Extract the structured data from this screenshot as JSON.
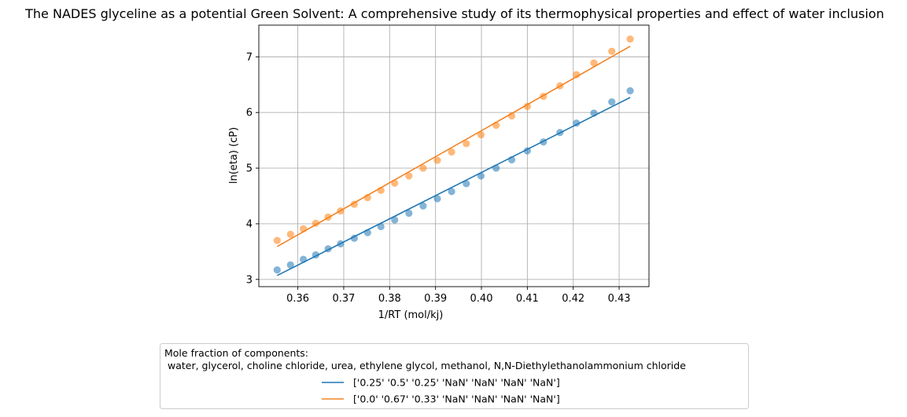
{
  "chart_data": {
    "type": "scatter",
    "title": "The NADES glyceline as a potential Green Solvent: A comprehensive study of its thermophysical properties and effect of water inclusion",
    "xlabel": "1/RT (mol/kj)",
    "ylabel": "ln(eta) (cP)",
    "xlim": [
      0.3515,
      0.4365
    ],
    "ylim": [
      2.87,
      7.57
    ],
    "xticks": [
      0.36,
      0.37,
      0.38,
      0.39,
      0.4,
      0.41,
      0.42,
      0.43
    ],
    "xtick_labels": [
      "0.36",
      "0.37",
      "0.38",
      "0.39",
      "0.40",
      "0.41",
      "0.42",
      "0.43"
    ],
    "yticks": [
      3,
      4,
      5,
      6,
      7
    ],
    "ytick_labels": [
      "3",
      "4",
      "5",
      "6",
      "7"
    ],
    "grid": true,
    "legend_position": "below",
    "legend_title_line1": "Mole fraction of components:",
    "legend_title_line2": " water, glycerol, choline chloride, urea, ethylene glycol, methanol, N,N-Diethylethanolammonium chloride",
    "x": [
      0.3555,
      0.3584,
      0.3612,
      0.3639,
      0.3666,
      0.3693,
      0.3723,
      0.3752,
      0.3781,
      0.3811,
      0.3842,
      0.3873,
      0.3904,
      0.3935,
      0.3967,
      0.3999,
      0.4032,
      0.4066,
      0.41,
      0.4135,
      0.4171,
      0.4207,
      0.4245,
      0.4284,
      0.4324
    ],
    "series": [
      {
        "name": "['0.25' '0.5' '0.25' 'NaN' 'NaN' 'NaN' 'NaN']",
        "color": "#1f77b4",
        "points_y": [
          3.17,
          3.26,
          3.36,
          3.44,
          3.55,
          3.64,
          3.74,
          3.84,
          3.95,
          4.07,
          4.19,
          4.32,
          4.45,
          4.58,
          4.72,
          4.86,
          5.0,
          5.15,
          5.31,
          5.47,
          5.64,
          5.81,
          5.99,
          6.19,
          6.39
        ],
        "fit_y": [
          3.07,
          6.27
        ]
      },
      {
        "name": "['0.0' '0.67' '0.33' 'NaN' 'NaN' 'NaN' 'NaN']",
        "color": "#ff7f0e",
        "line_color": "#f28224",
        "points_y": [
          3.7,
          3.81,
          3.91,
          4.01,
          4.12,
          4.23,
          4.35,
          4.47,
          4.6,
          4.73,
          4.86,
          5.0,
          5.14,
          5.29,
          5.44,
          5.6,
          5.77,
          5.94,
          6.11,
          6.29,
          6.48,
          6.68,
          6.89,
          7.1,
          7.32
        ],
        "fit_y": [
          3.59,
          7.19
        ]
      }
    ]
  }
}
